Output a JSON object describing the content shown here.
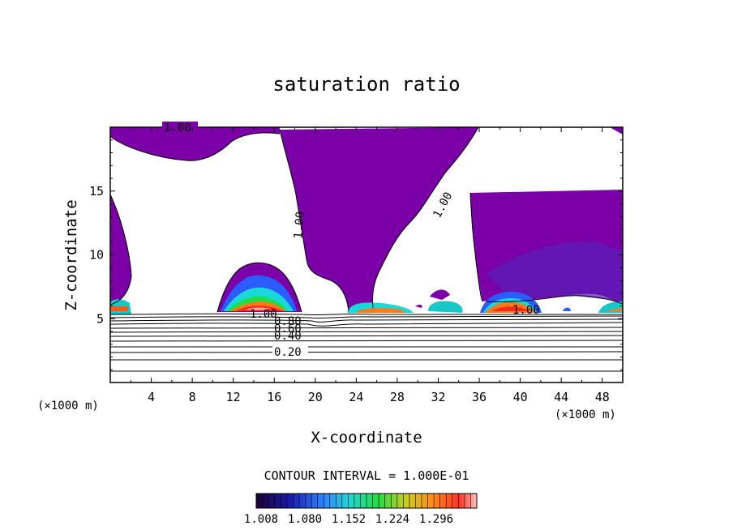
{
  "chart_data": {
    "type": "heatmap",
    "title": "saturation ratio",
    "xlabel": "X-coordinate",
    "ylabel": "Z-coordinate",
    "x_unit_left": "(×1000 m)",
    "x_unit_right": "(×1000 m)",
    "xlim": [
      0,
      50
    ],
    "ylim": [
      0,
      20
    ],
    "x_ticks": [
      "4",
      "8",
      "12",
      "16",
      "20",
      "24",
      "28",
      "32",
      "36",
      "40",
      "44",
      "48"
    ],
    "y_ticks": [
      "5",
      "10",
      "15"
    ],
    "contour_labels": [
      "1.00",
      "1.00",
      "1.00",
      "1.00",
      "0.80",
      "0.60",
      "0.40",
      "0.20",
      "1.00"
    ],
    "contour_interval_text": "CONTOUR INTERVAL = 1.000E-01",
    "colorbar": {
      "labels": [
        "1.008",
        "1.080",
        "1.152",
        "1.224",
        "1.296"
      ],
      "colors": [
        "#1a0033",
        "#1a1aaa",
        "#2e7fff",
        "#21d6d6",
        "#22dd44",
        "#cccc22",
        "#ff8c1a",
        "#ff3322",
        "#ffc0c0"
      ]
    },
    "colors": {
      "purple": "#7b00a8",
      "indigo": "#5a20b8",
      "blue": "#2a5cff",
      "cyan": "#18d8d8",
      "green": "#22dd44",
      "yellow": "#dddd22",
      "orange": "#ff7a1a",
      "red": "#ff2a1a",
      "pink": "#ffb0b0"
    }
  }
}
